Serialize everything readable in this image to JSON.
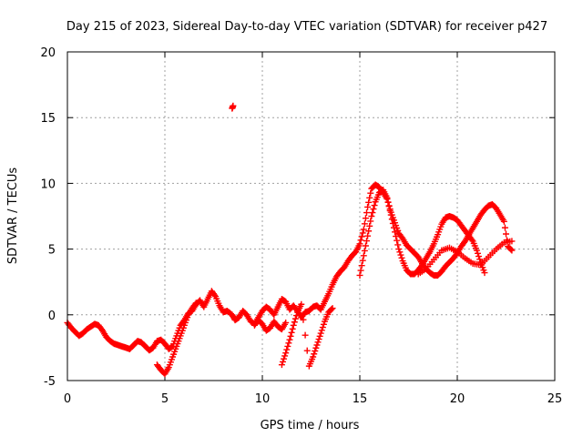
{
  "chart_data": {
    "type": "scatter",
    "title": "Day 215 of 2023, Sidereal Day-to-day VTEC variation (SDTVAR) for receiver p427",
    "xlabel": "GPS time / hours",
    "ylabel": "SDTVAR / TECUs",
    "xlim": [
      0,
      25
    ],
    "ylim": [
      -5,
      20
    ],
    "xticks": [
      "0",
      "5",
      "10",
      "15",
      "20",
      "25"
    ],
    "yticks": [
      "-5",
      "0",
      "5",
      "10",
      "15",
      "20"
    ],
    "grid": true,
    "marker": "+",
    "colors": {
      "series": "#ff0000"
    },
    "series": [
      {
        "name": "SDTVAR",
        "x": [
          0.0,
          0.2,
          0.4,
          0.6,
          0.8,
          1.0,
          1.2,
          1.4,
          1.6,
          1.8,
          2.0,
          2.2,
          2.4,
          2.6,
          2.8,
          3.0,
          3.2,
          3.4,
          3.6,
          3.8,
          4.0,
          4.2,
          4.4,
          4.6,
          4.8,
          5.0,
          5.2,
          5.4,
          5.6,
          5.8,
          6.0,
          6.2,
          6.4,
          6.6,
          6.8,
          7.0,
          7.2,
          7.4,
          7.6,
          7.8,
          8.0,
          8.2,
          8.45,
          8.6,
          8.8,
          9.0,
          9.2,
          9.4,
          9.6,
          9.8,
          10.0,
          10.2,
          10.4,
          10.6,
          10.8,
          11.0,
          11.2,
          11.4,
          11.6,
          11.8,
          12.0,
          12.2,
          12.4,
          12.6,
          12.8,
          13.0,
          13.2,
          13.4,
          13.6,
          13.8,
          14.0,
          14.2,
          14.4,
          14.6,
          14.8,
          15.0,
          15.2,
          15.4,
          15.6,
          15.8,
          16.0,
          16.2,
          16.4,
          16.6,
          16.8,
          17.0,
          17.2,
          17.4,
          17.6,
          17.8,
          18.0,
          18.2,
          18.4,
          18.6,
          18.8,
          19.0,
          19.2,
          19.4,
          19.6,
          19.8,
          20.0,
          20.2,
          20.4,
          20.6,
          20.8,
          21.0,
          21.2,
          21.4,
          21.6,
          21.8,
          22.0,
          22.2,
          22.4,
          22.6,
          22.8,
          4.6,
          4.8,
          5.0,
          5.2,
          5.4,
          5.6,
          5.8,
          6.0,
          6.2,
          6.4,
          6.6,
          11.0,
          11.2,
          11.4,
          11.6,
          11.8,
          12.0,
          12.4,
          12.6,
          12.8,
          13.0,
          13.2,
          13.4,
          13.6,
          8.45,
          8.5,
          15.0,
          15.2,
          15.4,
          15.6,
          15.8,
          16.0,
          16.2,
          16.4,
          16.6,
          16.8,
          17.0,
          17.2,
          17.4,
          17.6,
          17.8,
          18.0,
          18.2,
          18.4,
          18.6,
          18.8,
          19.0,
          19.2,
          19.4,
          19.6,
          19.8,
          20.0,
          20.2,
          20.4,
          20.6,
          20.8,
          21.0,
          21.2,
          21.4,
          18.0,
          18.4,
          18.8,
          19.2,
          19.6,
          20.0,
          20.4,
          20.8,
          21.2,
          21.6,
          22.0,
          22.4,
          22.8,
          9.6,
          9.8,
          10.0,
          10.2,
          10.4,
          10.6,
          10.8,
          11.0,
          11.2
        ],
        "y": [
          -0.6,
          -1.0,
          -1.3,
          -1.6,
          -1.4,
          -1.1,
          -0.9,
          -0.7,
          -0.8,
          -1.2,
          -1.7,
          -2.0,
          -2.2,
          -2.3,
          -2.4,
          -2.5,
          -2.6,
          -2.3,
          -2.0,
          -2.1,
          -2.4,
          -2.7,
          -2.5,
          -2.0,
          -1.9,
          -2.2,
          -2.6,
          -2.4,
          -1.6,
          -0.8,
          -0.4,
          0.1,
          0.3,
          0.8,
          1.1,
          0.6,
          1.2,
          1.8,
          1.4,
          0.7,
          0.2,
          0.3,
          0.0,
          -0.4,
          -0.2,
          0.3,
          0.0,
          -0.5,
          -0.7,
          -0.2,
          0.3,
          0.6,
          0.4,
          0.0,
          0.6,
          1.2,
          1.0,
          0.4,
          0.7,
          0.3,
          -0.2,
          0.2,
          0.3,
          0.6,
          0.7,
          0.4,
          1.0,
          1.6,
          2.3,
          2.9,
          3.3,
          3.6,
          4.1,
          4.5,
          4.8,
          5.4,
          6.5,
          8.2,
          9.6,
          9.9,
          9.7,
          9.3,
          8.8,
          7.8,
          7.0,
          6.2,
          5.8,
          5.3,
          5.0,
          4.7,
          4.4,
          3.9,
          3.5,
          3.2,
          3.0,
          3.0,
          3.3,
          3.7,
          4.0,
          4.3,
          4.7,
          5.2,
          5.6,
          6.1,
          6.6,
          7.1,
          7.6,
          8.0,
          8.3,
          8.4,
          8.1,
          7.6,
          7.1,
          5.2,
          4.9,
          -3.8,
          -4.2,
          -4.5,
          -4.0,
          -3.2,
          -2.4,
          -1.6,
          -0.8,
          0.0,
          0.5,
          0.9,
          -3.8,
          -2.9,
          -1.9,
          -0.8,
          0.2,
          0.8,
          -3.9,
          -3.2,
          -2.3,
          -1.4,
          -0.5,
          0.2,
          0.5,
          15.7,
          15.9,
          3.0,
          4.5,
          6.0,
          7.5,
          8.6,
          9.3,
          9.5,
          8.9,
          7.6,
          6.3,
          5.0,
          4.1,
          3.4,
          3.1,
          3.1,
          3.4,
          3.8,
          4.3,
          4.8,
          5.4,
          6.1,
          6.9,
          7.4,
          7.5,
          7.4,
          7.2,
          6.8,
          6.4,
          6.0,
          5.6,
          4.9,
          4.0,
          3.2,
          3.1,
          3.5,
          4.2,
          4.9,
          5.1,
          4.8,
          4.3,
          3.9,
          3.8,
          4.4,
          5.0,
          5.5,
          5.6,
          -0.8,
          -0.4,
          -0.7,
          -1.2,
          -1.0,
          -0.5,
          -0.9,
          -1.1,
          -0.6
        ]
      }
    ]
  }
}
